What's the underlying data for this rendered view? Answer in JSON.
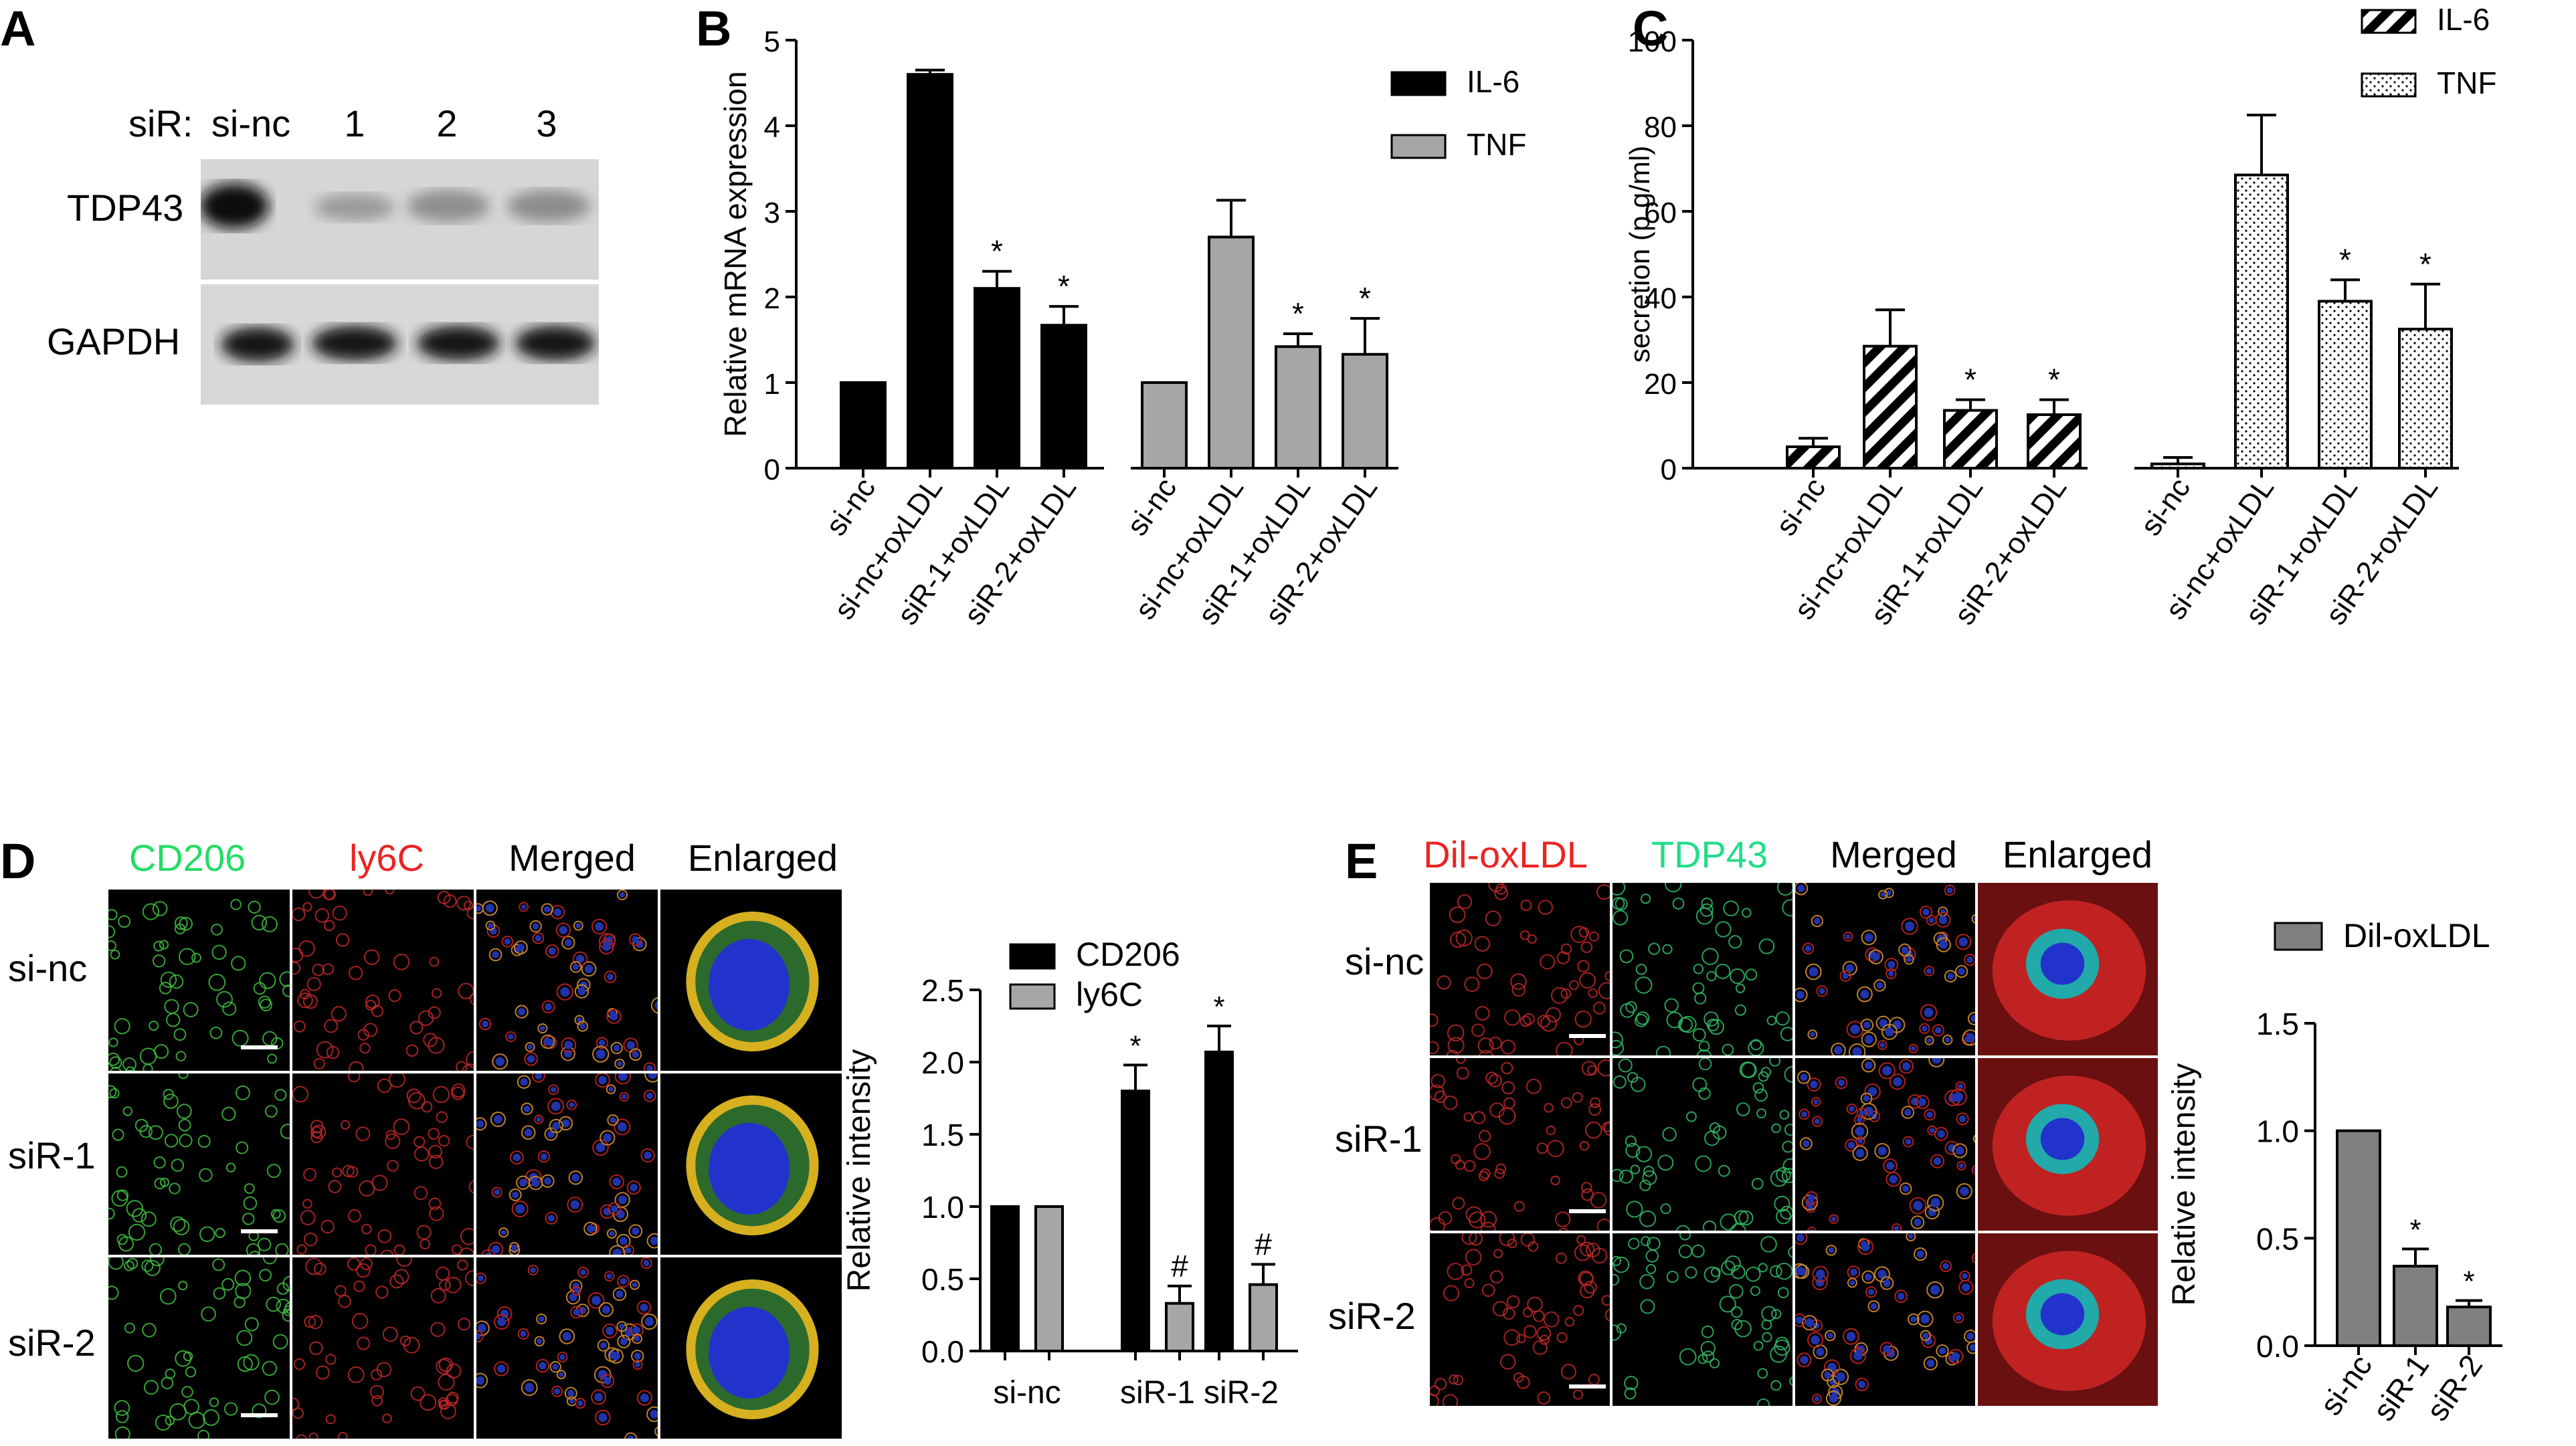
{
  "panels": {
    "a": "A",
    "b": "B",
    "c": "C",
    "d": "D",
    "e": "E"
  },
  "panel_a": {
    "header_prefix": "siR:",
    "lanes": [
      "si-nc",
      "1",
      "2",
      "3"
    ],
    "rows": [
      "TDP43",
      "GAPDH"
    ]
  },
  "panel_d": {
    "columns": [
      "CD206",
      "ly6C",
      "Merged",
      "Enlarged"
    ],
    "rows": [
      "si-nc",
      "siR-1",
      "siR-2"
    ],
    "column_colors": [
      "#22dd66",
      "#ee2222",
      "#111111",
      "#111111"
    ]
  },
  "panel_e": {
    "columns": [
      "Dil-oxLDL",
      "TDP43",
      "Merged",
      "Enlarged"
    ],
    "rows": [
      "si-nc",
      "siR-1",
      "siR-2"
    ],
    "column_colors": [
      "#ee2222",
      "#22dd88",
      "#111111",
      "#111111"
    ]
  },
  "chart_data": [
    {
      "id": "B",
      "type": "bar",
      "ylabel": "Relative mRNA  expression",
      "ylim": [
        0,
        5
      ],
      "yticks": [
        "0",
        "1",
        "2",
        "3",
        "4",
        "5"
      ],
      "categories": [
        "si-nc",
        "si-nc+oxLDL",
        "siR-1+oxLDL",
        "siR-2+oxLDL"
      ],
      "legend_position": "top-right",
      "series": [
        {
          "name": "IL-6",
          "color": "#000000",
          "values": [
            1.0,
            4.6,
            2.1,
            1.67
          ],
          "errors": [
            0,
            0.05,
            0.2,
            0.22
          ],
          "annotations": [
            "",
            "",
            "*",
            "*"
          ]
        },
        {
          "name": "TNF",
          "color": "#a6a6a6",
          "values": [
            1.0,
            2.7,
            1.42,
            1.33
          ],
          "errors": [
            0,
            0.43,
            0.15,
            0.42
          ],
          "annotations": [
            "",
            "",
            "*",
            "*"
          ]
        }
      ]
    },
    {
      "id": "C",
      "type": "bar",
      "ylabel": "secretion (p g/ml)",
      "ylim": [
        0,
        100
      ],
      "yticks": [
        "0",
        "20",
        "40",
        "60",
        "80",
        "100"
      ],
      "categories": [
        "si-nc",
        "si-nc+oxLDL",
        "siR-1+oxLDL",
        "siR-2+oxLDL"
      ],
      "legend_position": "top-right",
      "series": [
        {
          "name": "IL-6",
          "pattern": "hatched",
          "values": [
            5,
            28.5,
            13.5,
            12.5
          ],
          "errors": [
            2,
            8.5,
            2.5,
            3.5
          ],
          "annotations": [
            "",
            "",
            "*",
            "*"
          ]
        },
        {
          "name": "TNF",
          "pattern": "dotted",
          "values": [
            1,
            68.5,
            39,
            32.5
          ],
          "errors": [
            1.5,
            14,
            5,
            10.5
          ],
          "annotations": [
            "",
            "",
            "*",
            "*"
          ]
        }
      ]
    },
    {
      "id": "D",
      "type": "bar",
      "ylabel": "Relative intensity",
      "ylim": [
        0,
        2.5
      ],
      "yticks": [
        "0.0",
        "0.5",
        "1.0",
        "1.5",
        "2.0",
        "2.5"
      ],
      "categories": [
        "si-nc",
        "siR-1",
        "siR-2"
      ],
      "legend_position": "top",
      "series": [
        {
          "name": "CD206",
          "color": "#000000",
          "values": [
            1.0,
            1.8,
            2.07
          ],
          "errors": [
            0,
            0.18,
            0.18
          ],
          "annotations": [
            "",
            "*",
            "*"
          ]
        },
        {
          "name": "ly6C",
          "color": "#a6a6a6",
          "values": [
            1.0,
            0.33,
            0.46
          ],
          "errors": [
            0,
            0.12,
            0.14
          ],
          "annotations": [
            "",
            "#",
            "#"
          ]
        }
      ]
    },
    {
      "id": "E",
      "type": "bar",
      "ylabel": "Relative intensity",
      "ylim": [
        0,
        1.5
      ],
      "yticks": [
        "0.0",
        "0.5",
        "1.0",
        "1.5"
      ],
      "categories": [
        "si-nc",
        "siR-1",
        "siR-2"
      ],
      "legend_position": "top",
      "series": [
        {
          "name": "Dil-oxLDL",
          "color": "#808080",
          "values": [
            1.0,
            0.37,
            0.18
          ],
          "errors": [
            0,
            0.08,
            0.03
          ],
          "annotations": [
            "",
            "*",
            "*"
          ]
        }
      ]
    }
  ]
}
